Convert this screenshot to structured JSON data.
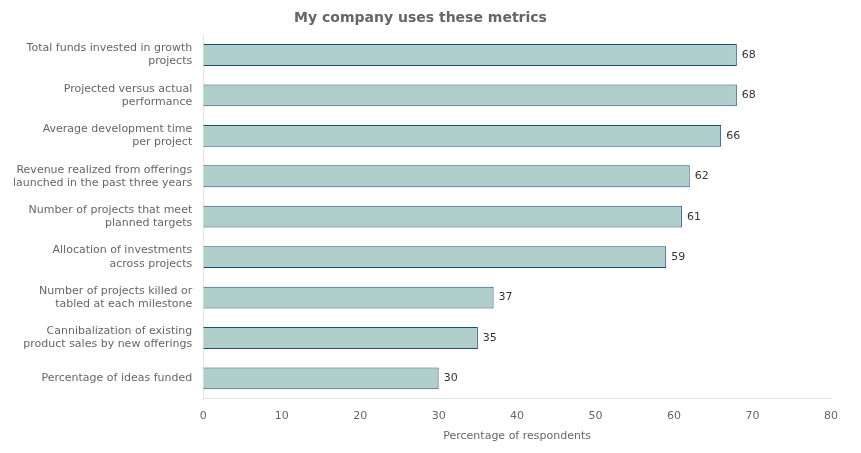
{
  "chart_data": {
    "type": "bar",
    "orientation": "horizontal",
    "title": "My company uses these metrics",
    "categories": [
      "Total funds invested in growth\nprojects",
      "Projected versus actual\nperformance",
      "Average development time\nper project",
      "Revenue realized from offerings\nlaunched in the past three years",
      "Number of projects that meet\nplanned targets",
      "Allocation of investments\nacross projects",
      "Number of projects killed or\ntabled at each milestone",
      "Cannibalization of existing\nproduct sales by new offerings",
      "Percentage of ideas funded"
    ],
    "values": [
      68,
      68,
      66,
      62,
      61,
      59,
      37,
      35,
      30
    ],
    "color": "#b0ceca",
    "xlabel": "Percentage of respondents",
    "xlim": [
      0,
      80
    ],
    "xticks": [
      0,
      10,
      20,
      30,
      40,
      50,
      60,
      70,
      80
    ],
    "grid": false,
    "data_labels": true
  }
}
